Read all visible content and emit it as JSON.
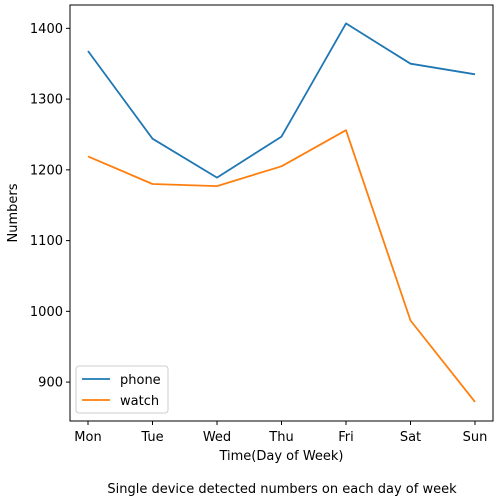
{
  "chart_data": {
    "type": "line",
    "categories": [
      "Mon",
      "Tue",
      "Wed",
      "Thu",
      "Fri",
      "Sat",
      "Sun"
    ],
    "series": [
      {
        "name": "phone",
        "values": [
          1368,
          1244,
          1189,
          1247,
          1407,
          1350,
          1335
        ],
        "color": "#1f77b4"
      },
      {
        "name": "watch",
        "values": [
          1219,
          1180,
          1177,
          1205,
          1256,
          987,
          872
        ],
        "color": "#ff7f0e"
      }
    ],
    "xlabel": "Time(Day of Week)",
    "ylabel": "Numbers",
    "caption": "Single device detected numbers on each day of week",
    "ylim": [
      845,
      1433
    ],
    "yticks": [
      900,
      1000,
      1100,
      1200,
      1300,
      1400
    ],
    "grid": false,
    "legend_position": "lower-left"
  }
}
